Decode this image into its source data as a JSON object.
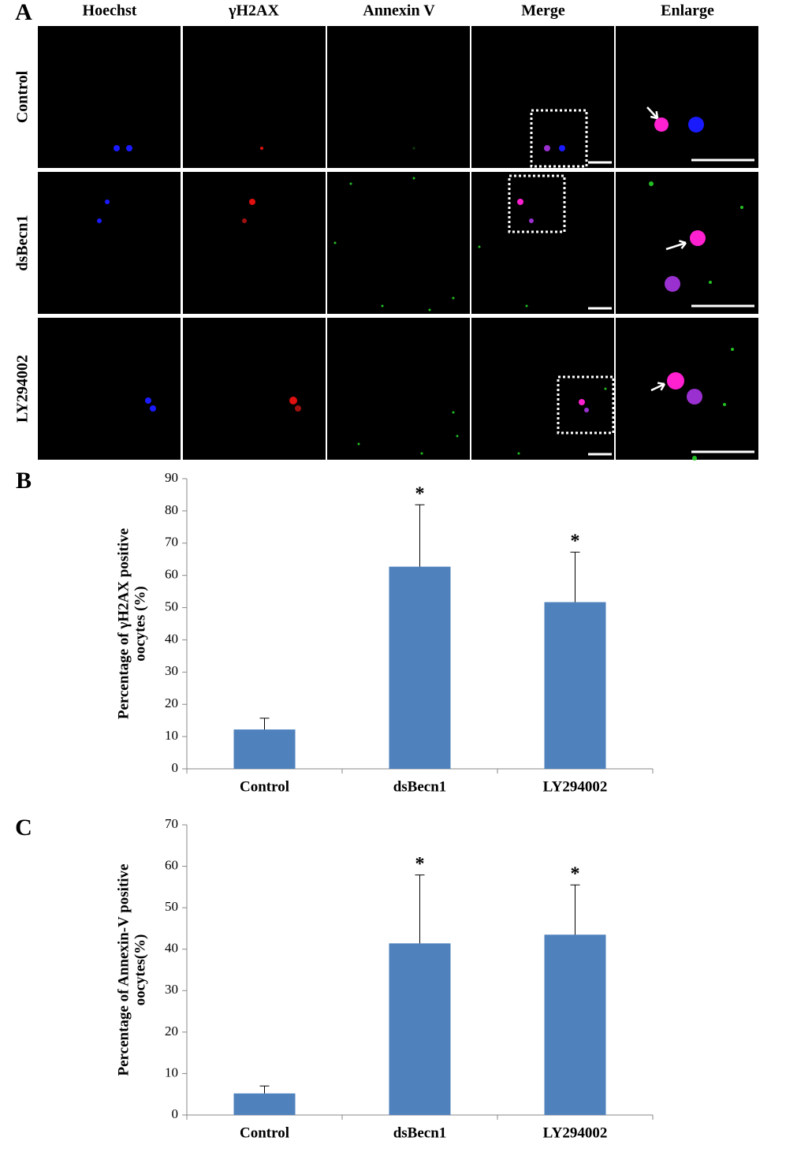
{
  "panel_a": {
    "label": "A",
    "columns": [
      "Hoechst",
      "γH2AX",
      "Annexin V",
      "Merge",
      "Enlarge"
    ],
    "rows": [
      "Control",
      "dsBecn1",
      "LY294002"
    ]
  },
  "chart_data": [
    {
      "type": "bar",
      "panel_label": "B",
      "ylabel": [
        "Percentage of γH2AX positive",
        "oocytes (%)"
      ],
      "categories": [
        "Control",
        "dsBecn1",
        "LY294002"
      ],
      "values": [
        12.2,
        62.7,
        51.7
      ],
      "errors": [
        3.5,
        19.2,
        15.5
      ],
      "annotations": [
        null,
        "*",
        "*"
      ],
      "color": "#4f81bd",
      "ylim": [
        0,
        90
      ],
      "yticks": [
        0,
        10,
        20,
        30,
        40,
        50,
        60,
        70,
        80,
        90
      ]
    },
    {
      "type": "bar",
      "panel_label": "C",
      "ylabel": [
        "Percentage of Annexin-V positive",
        "oocytes(%)"
      ],
      "categories": [
        "Control",
        "dsBecn1",
        "LY294002"
      ],
      "values": [
        5.2,
        41.4,
        43.5
      ],
      "errors": [
        1.8,
        16.5,
        12.0
      ],
      "annotations": [
        null,
        "*",
        "*"
      ],
      "color": "#4f81bd",
      "ylim": [
        0,
        70
      ],
      "yticks": [
        0,
        10,
        20,
        30,
        40,
        50,
        60,
        70
      ]
    }
  ]
}
